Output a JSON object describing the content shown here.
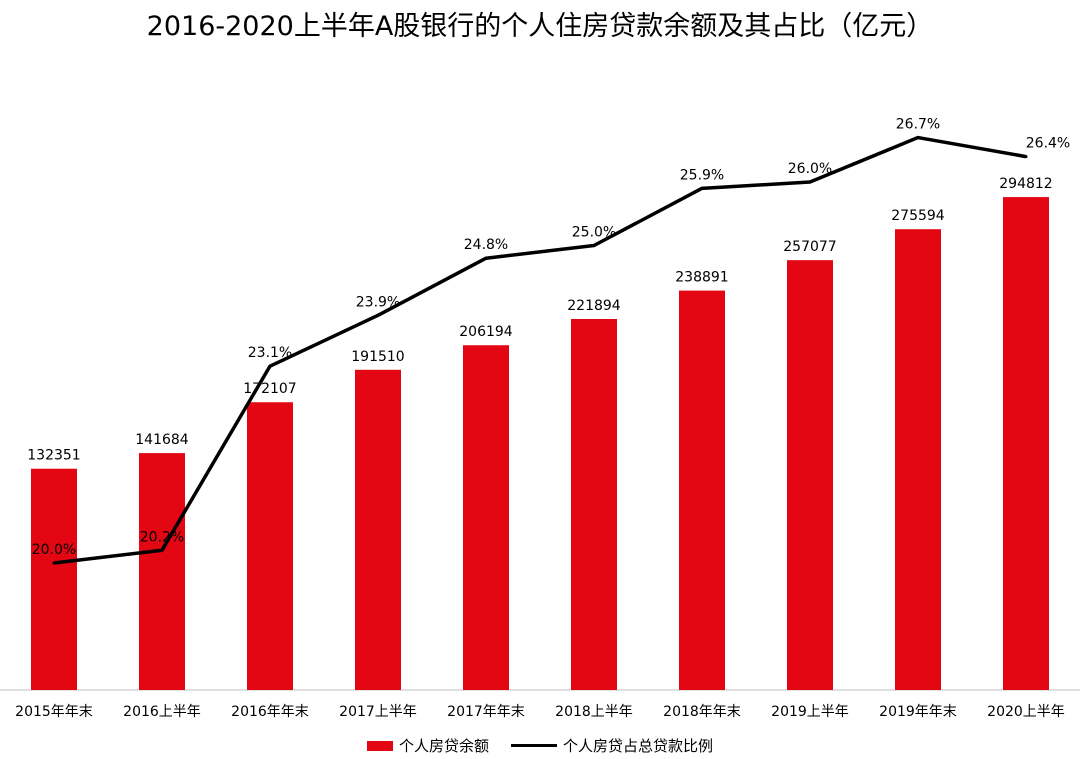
{
  "chart_data": {
    "type": "bar",
    "title": "2016-2020上半年A股银行的个人住房贷款余额及其占比（亿元）",
    "categories": [
      "2015年年末",
      "2016上半年",
      "2016年年末",
      "2017上半年",
      "2017年年末",
      "2018上半年",
      "2018年年末",
      "2019上半年",
      "2019年年末",
      "2020上半年"
    ],
    "series": [
      {
        "name": "个人房贷余额",
        "type": "bar",
        "values": [
          132351,
          141684,
          172107,
          191510,
          206194,
          221894,
          238891,
          257077,
          275594,
          294812
        ],
        "labels": [
          "132351",
          "141684",
          "172107",
          "191510",
          "206194",
          "221894",
          "238891",
          "257077",
          "275594",
          "294812"
        ],
        "color": "#e30613"
      },
      {
        "name": "个人房贷占总贷款比例",
        "type": "line",
        "values": [
          20.0,
          20.2,
          23.1,
          23.9,
          24.8,
          25.0,
          25.9,
          26.0,
          26.7,
          26.4
        ],
        "labels": [
          "20.0%",
          "20.2%",
          "23.1%",
          "23.9%",
          "24.8%",
          "25.0%",
          "25.9%",
          "26.0%",
          "26.7%",
          "26.4%"
        ],
        "color": "#000000"
      }
    ],
    "grid": false,
    "legend": "bottom"
  }
}
